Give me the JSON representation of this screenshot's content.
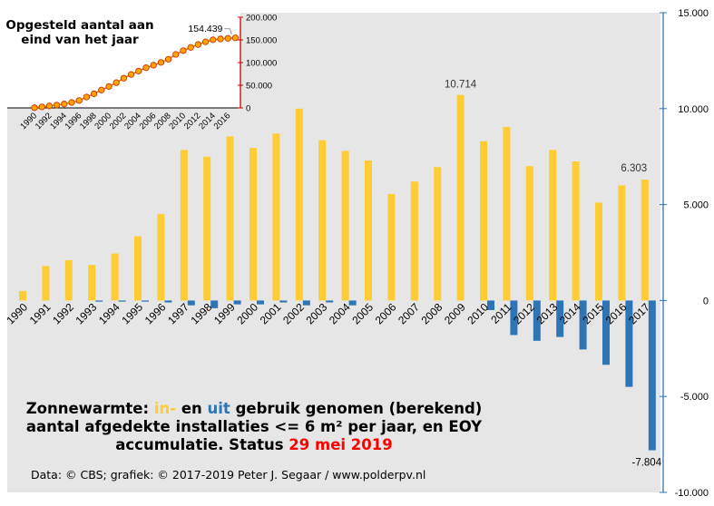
{
  "chart_data": [
    {
      "type": "bar",
      "categories": [
        "1990",
        "1991",
        "1992",
        "1993",
        "1994",
        "1995",
        "1996",
        "1997",
        "1998",
        "1999",
        "2000",
        "2001",
        "2002",
        "2003",
        "2004",
        "2005",
        "2006",
        "2007",
        "2008",
        "2009",
        "2010",
        "2011",
        "2012",
        "2013",
        "2014",
        "2015",
        "2016",
        "2017"
      ],
      "series": [
        {
          "name": "in",
          "color": "#FFCC33",
          "values": [
            500,
            1800,
            2100,
            1850,
            2450,
            3350,
            4500,
            7850,
            7500,
            8550,
            7950,
            8700,
            10000,
            8350,
            7800,
            7300,
            5550,
            6200,
            6950,
            10714,
            8300,
            9050,
            7000,
            7850,
            7250,
            5100,
            6000,
            6303
          ]
        },
        {
          "name": "uit",
          "color": "#2E75B6",
          "values": [
            0,
            0,
            0,
            -60,
            -60,
            -60,
            -100,
            -250,
            -400,
            -200,
            -200,
            -100,
            -250,
            -100,
            -250,
            0,
            0,
            0,
            0,
            0,
            -500,
            -1800,
            -2100,
            -1900,
            -2550,
            -3350,
            -4500,
            -7804
          ]
        }
      ],
      "ylim": [
        -10000,
        15000
      ],
      "yticks": [
        "-10.000",
        "-5.000",
        "0",
        "5.000",
        "10.000",
        "15.000"
      ],
      "data_labels": {
        "2009": "10.714",
        "2017_in": "6.303",
        "2017_uit": "-7.804"
      },
      "grid": false,
      "background": "#E6E6E6"
    },
    {
      "type": "line",
      "title": "Opgesteld aantal aan eind van het jaar",
      "x": [
        1990,
        1991,
        1992,
        1993,
        1994,
        1995,
        1996,
        1997,
        1998,
        1999,
        2000,
        2001,
        2002,
        2003,
        2004,
        2005,
        2006,
        2007,
        2008,
        2009,
        2010,
        2011,
        2012,
        2013,
        2014,
        2015,
        2016,
        2017
      ],
      "y": [
        500,
        2300,
        4400,
        6200,
        8600,
        11900,
        16300,
        24000,
        31100,
        39400,
        47100,
        55700,
        65500,
        73700,
        81300,
        88600,
        94100,
        100300,
        107300,
        118000,
        126300,
        133400,
        139900,
        145700,
        150300,
        152100,
        153500,
        154439
      ],
      "xticks": [
        "1990",
        "1992",
        "1994",
        "1996",
        "1998",
        "2000",
        "2002",
        "2004",
        "2006",
        "2008",
        "2010",
        "2012",
        "2014",
        "2016"
      ],
      "yticks": [
        "0",
        "50.000",
        "100.000",
        "150.000",
        "200.000"
      ],
      "ylim": [
        0,
        200000
      ],
      "data_label": "154.439",
      "line_color": "#FF6600",
      "marker_fill": "#FFA500",
      "axis_color": "#CC0000"
    }
  ],
  "caption": {
    "line1_pre": "Zonnewarmte: ",
    "line1_in": "in-",
    "line1_mid": " en ",
    "line1_uit": "uit",
    "line1_post": " gebruik genomen (berekend)",
    "line2": "aantal afgedekte installaties <= 6 m² per jaar, en EOY",
    "line3_pre": "accumulatie. Status ",
    "line3_date": "29 mei 2019",
    "in_color": "#FFCC33",
    "uit_color": "#2E75B6",
    "date_color": "#FF0000"
  },
  "credit": "Data: © CBS; grafiek: © 2017-2019 Peter J. Segaar / www.polderpv.nl"
}
